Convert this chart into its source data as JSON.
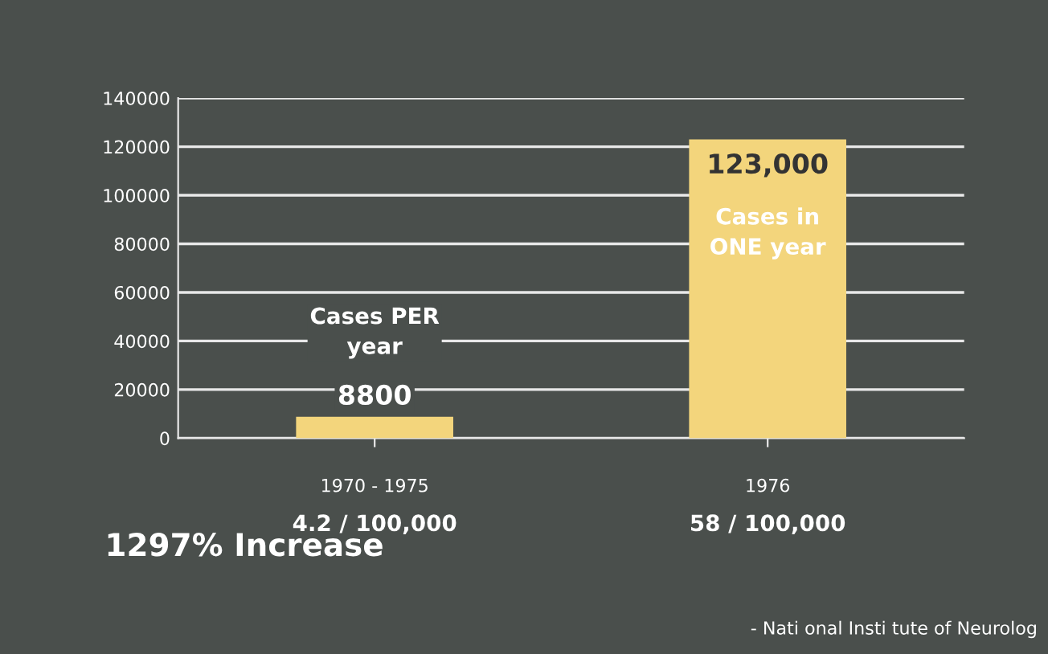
{
  "chart_data": {
    "type": "bar",
    "categories": [
      "1970 - 1975",
      "1976"
    ],
    "values": [
      8800,
      123000
    ],
    "color": "#f3d57c",
    "value_labels": [
      "8800",
      "123,000"
    ],
    "ylim": [
      0,
      140000
    ],
    "yticks": [
      0,
      20000,
      40000,
      60000,
      80000,
      100000,
      120000,
      140000
    ],
    "grid": "y",
    "annotations": [
      "Cases PER year",
      "Cases in ONE year",
      "4.2 / 100,000",
      "58 / 100,000",
      "1297% Increase",
      "- Nati onal Insti tute of Neurolog"
    ]
  }
}
